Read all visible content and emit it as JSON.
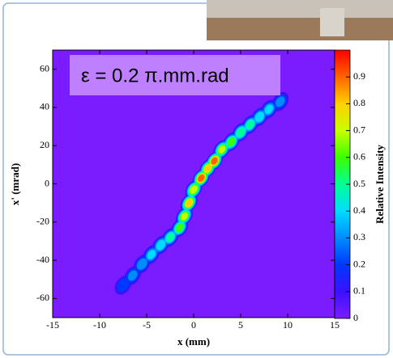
{
  "chart_data": {
    "type": "heatmap",
    "annotation": "ε = 0.2 π.mm.rad",
    "xlabel": "x (mm)",
    "ylabel": "x' (mrad)",
    "colorbar_label": "Relative Intensity",
    "xlim": [
      -15,
      15
    ],
    "xticks": [
      -15,
      -10,
      -5,
      0,
      5,
      10,
      15
    ],
    "ylim": [
      -70,
      70
    ],
    "yticks": [
      -60,
      -40,
      -20,
      0,
      20,
      40,
      60
    ],
    "zlim": [
      0,
      1
    ],
    "zticks": [
      0,
      0.1,
      0.2,
      0.3,
      0.4,
      0.5,
      0.6,
      0.7,
      0.8,
      0.9
    ],
    "colorscale": [
      "#7a1cff",
      "#3a10ff",
      "#0038ff",
      "#008cff",
      "#00dcff",
      "#00ff96",
      "#3cff00",
      "#c8ff00",
      "#ffd000",
      "#ff6400",
      "#ff0000"
    ],
    "spots": {
      "x": [
        -7.5,
        -6.5,
        -5.5,
        -4.5,
        -3.5,
        -2.5,
        -1.5,
        -1,
        -0.5,
        0,
        0.8,
        1.5,
        2.2,
        3,
        4,
        5,
        6,
        7,
        8,
        9.2
      ],
      "y": [
        -53,
        -48,
        -42,
        -37,
        -32,
        -28,
        -23,
        -17,
        -10,
        -3,
        3,
        8,
        12,
        18,
        22,
        27,
        31,
        35,
        39,
        43
      ],
      "intensity": [
        0.25,
        0.3,
        0.35,
        0.4,
        0.45,
        0.5,
        0.6,
        0.7,
        0.8,
        0.75,
        0.9,
        0.8,
        0.9,
        0.7,
        0.6,
        0.55,
        0.5,
        0.45,
        0.4,
        0.3
      ]
    }
  }
}
